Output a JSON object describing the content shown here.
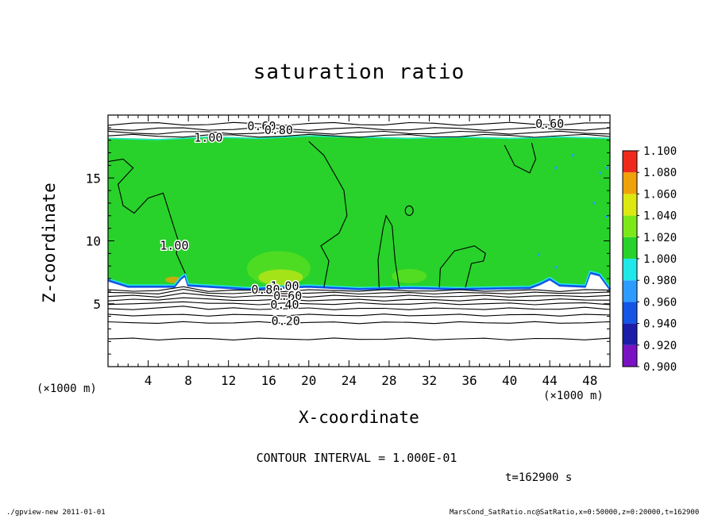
{
  "chart_data": {
    "type": "heatmap",
    "title": "saturation ratio",
    "xlabel": "X-coordinate",
    "ylabel": "Z-coordinate",
    "x_unit": "(×1000 m)",
    "x_range": [
      0,
      50
    ],
    "y_range": [
      0,
      20
    ],
    "x_ticks": [
      4,
      8,
      12,
      16,
      20,
      24,
      28,
      32,
      36,
      40,
      44,
      48
    ],
    "y_ticks": [
      5,
      10,
      15
    ],
    "colorbar": {
      "levels": [
        0.9,
        0.92,
        0.94,
        0.96,
        0.98,
        1.0,
        1.02,
        1.04,
        1.06,
        1.08,
        1.1
      ],
      "labels": [
        "0.900",
        "0.920",
        "0.940",
        "0.960",
        "0.980",
        "1.000",
        "1.020",
        "1.040",
        "1.060",
        "1.080",
        "1.100"
      ],
      "colors": [
        "#7a12c4",
        "#1c1ca8",
        "#1455e6",
        "#2e9cff",
        "#20e8e8",
        "#28d22a",
        "#7ce81a",
        "#dde810",
        "#f0a20a",
        "#ef2a1c",
        "#f58890"
      ]
    },
    "contour_labels": [
      {
        "text": "0.60",
        "x": 15.3,
        "z": 18.8
      },
      {
        "text": "0.80",
        "x": 17.0,
        "z": 18.5
      },
      {
        "text": "1.00",
        "x": 10.0,
        "z": 17.9
      },
      {
        "text": "0.60",
        "x": 44.0,
        "z": 19.0
      },
      {
        "text": "1.00",
        "x": 6.6,
        "z": 9.3
      },
      {
        "text": "1.00",
        "x": 17.6,
        "z": 6.1
      },
      {
        "text": "0.80",
        "x": 15.7,
        "z": 5.8
      },
      {
        "text": "0.60",
        "x": 17.9,
        "z": 5.3
      },
      {
        "text": "0.40",
        "x": 17.6,
        "z": 4.6
      },
      {
        "text": "0.20",
        "x": 17.7,
        "z": 3.3
      }
    ],
    "contour_interval": 0.1
  },
  "texts": {
    "title": "saturation ratio",
    "xlabel": "X-coordinate",
    "ylabel": "Z-coordinate",
    "x_unit_left": "(×1000 m)",
    "x_unit_right": "(×1000 m)",
    "contour_interval": "CONTOUR INTERVAL = 1.000E-01",
    "time": "t=162900 s",
    "footer_left": "./gpview-new  2011-01-01",
    "footer_right": "MarsCond_SatRatio.nc@SatRatio,x=0:50000,z=0:20000,t=162900"
  }
}
